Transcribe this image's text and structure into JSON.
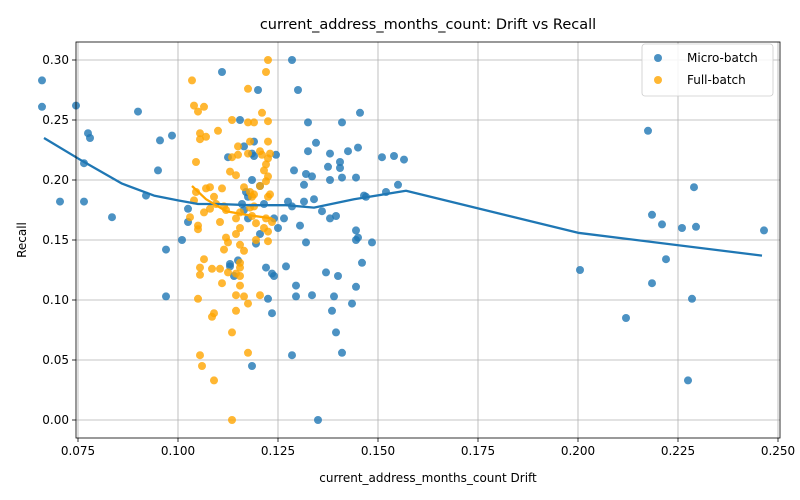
{
  "chart_data": {
    "type": "scatter",
    "title": "current_address_months_count: Drift vs Recall",
    "xlabel": "current_address_months_count Drift",
    "ylabel": "Recall",
    "xlim": [
      0.0745,
      0.2505
    ],
    "ylim": [
      -0.015,
      0.315
    ],
    "xticks": [
      "0.075",
      "0.100",
      "0.125",
      "0.150",
      "0.175",
      "0.200",
      "0.225",
      "0.250"
    ],
    "xtick_values": [
      0.075,
      0.1,
      0.125,
      0.15,
      0.175,
      0.2,
      0.225,
      0.25
    ],
    "yticks": [
      "0.00",
      "0.05",
      "0.10",
      "0.15",
      "0.20",
      "0.25",
      "0.30"
    ],
    "ytick_values": [
      0.0,
      0.05,
      0.1,
      0.15,
      0.2,
      0.25,
      0.3
    ],
    "grid": true,
    "legend_position": "top-right",
    "series": [
      {
        "name": "Micro-batch",
        "kind": "scatter",
        "color": "#1f77b4",
        "points": [
          [
            0.066,
            0.283
          ],
          [
            0.066,
            0.261
          ],
          [
            0.0745,
            0.262
          ],
          [
            0.0775,
            0.239
          ],
          [
            0.078,
            0.235
          ],
          [
            0.0765,
            0.214
          ],
          [
            0.0765,
            0.182
          ],
          [
            0.0705,
            0.182
          ],
          [
            0.0835,
            0.169
          ],
          [
            0.09,
            0.257
          ],
          [
            0.092,
            0.187
          ],
          [
            0.0955,
            0.233
          ],
          [
            0.0985,
            0.237
          ],
          [
            0.095,
            0.208
          ],
          [
            0.101,
            0.15
          ],
          [
            0.097,
            0.142
          ],
          [
            0.097,
            0.103
          ],
          [
            0.1025,
            0.165
          ],
          [
            0.1025,
            0.176
          ],
          [
            0.111,
            0.29
          ],
          [
            0.1125,
            0.219
          ],
          [
            0.113,
            0.13
          ],
          [
            0.114,
            0.12
          ],
          [
            0.116,
            0.18
          ],
          [
            0.117,
            0.19
          ],
          [
            0.1175,
            0.186
          ],
          [
            0.1165,
            0.228
          ],
          [
            0.1185,
            0.222
          ],
          [
            0.119,
            0.22
          ],
          [
            0.12,
            0.275
          ],
          [
            0.1155,
            0.25
          ],
          [
            0.1205,
            0.195
          ],
          [
            0.1205,
            0.155
          ],
          [
            0.1195,
            0.147
          ],
          [
            0.115,
            0.133
          ],
          [
            0.113,
            0.128
          ],
          [
            0.1165,
            0.175
          ],
          [
            0.1175,
            0.168
          ],
          [
            0.1185,
            0.2
          ],
          [
            0.119,
            0.232
          ],
          [
            0.1215,
            0.18
          ],
          [
            0.122,
            0.127
          ],
          [
            0.1225,
            0.101
          ],
          [
            0.1235,
            0.089
          ],
          [
            0.124,
            0.12
          ],
          [
            0.1235,
            0.122
          ],
          [
            0.124,
            0.168
          ],
          [
            0.1245,
            0.221
          ],
          [
            0.125,
            0.16
          ],
          [
            0.1265,
            0.168
          ],
          [
            0.127,
            0.128
          ],
          [
            0.1285,
            0.3
          ],
          [
            0.1275,
            0.182
          ],
          [
            0.1285,
            0.178
          ],
          [
            0.129,
            0.208
          ],
          [
            0.1295,
            0.112
          ],
          [
            0.13,
            0.275
          ],
          [
            0.1305,
            0.162
          ],
          [
            0.1315,
            0.182
          ],
          [
            0.1315,
            0.196
          ],
          [
            0.132,
            0.205
          ],
          [
            0.1325,
            0.224
          ],
          [
            0.1325,
            0.248
          ],
          [
            0.1335,
            0.203
          ],
          [
            0.134,
            0.184
          ],
          [
            0.1335,
            0.104
          ],
          [
            0.1345,
            0.231
          ],
          [
            0.135,
            0.0
          ],
          [
            0.132,
            0.148
          ],
          [
            0.1285,
            0.054
          ],
          [
            0.1295,
            0.103
          ],
          [
            0.136,
            0.174
          ],
          [
            0.137,
            0.123
          ],
          [
            0.138,
            0.168
          ],
          [
            0.1375,
            0.211
          ],
          [
            0.138,
            0.222
          ],
          [
            0.138,
            0.2
          ],
          [
            0.1385,
            0.091
          ],
          [
            0.139,
            0.103
          ],
          [
            0.1395,
            0.073
          ],
          [
            0.1395,
            0.17
          ],
          [
            0.14,
            0.12
          ],
          [
            0.1405,
            0.21
          ],
          [
            0.1405,
            0.215
          ],
          [
            0.141,
            0.202
          ],
          [
            0.141,
            0.248
          ],
          [
            0.141,
            0.056
          ],
          [
            0.1425,
            0.224
          ],
          [
            0.1435,
            0.097
          ],
          [
            0.1445,
            0.111
          ],
          [
            0.1445,
            0.15
          ],
          [
            0.1445,
            0.158
          ],
          [
            0.145,
            0.152
          ],
          [
            0.1445,
            0.202
          ],
          [
            0.145,
            0.227
          ],
          [
            0.1455,
            0.256
          ],
          [
            0.146,
            0.131
          ],
          [
            0.1465,
            0.187
          ],
          [
            0.147,
            0.186
          ],
          [
            0.1485,
            0.148
          ],
          [
            0.151,
            0.219
          ],
          [
            0.152,
            0.19
          ],
          [
            0.154,
            0.22
          ],
          [
            0.155,
            0.196
          ],
          [
            0.1565,
            0.217
          ],
          [
            0.1185,
            0.045
          ],
          [
            0.2005,
            0.125
          ],
          [
            0.212,
            0.085
          ],
          [
            0.2175,
            0.241
          ],
          [
            0.2185,
            0.171
          ],
          [
            0.2185,
            0.114
          ],
          [
            0.221,
            0.163
          ],
          [
            0.222,
            0.134
          ],
          [
            0.226,
            0.16
          ],
          [
            0.2275,
            0.033
          ],
          [
            0.2285,
            0.101
          ],
          [
            0.229,
            0.194
          ],
          [
            0.2295,
            0.161
          ],
          [
            0.2465,
            0.158
          ]
        ]
      },
      {
        "name": "Full-batch",
        "kind": "scatter",
        "color": "#ffa500",
        "points": [
          [
            0.1035,
            0.283
          ],
          [
            0.104,
            0.262
          ],
          [
            0.105,
            0.257
          ],
          [
            0.1065,
            0.261
          ],
          [
            0.1055,
            0.239
          ],
          [
            0.1055,
            0.234
          ],
          [
            0.107,
            0.236
          ],
          [
            0.1045,
            0.215
          ],
          [
            0.108,
            0.194
          ],
          [
            0.107,
            0.193
          ],
          [
            0.1045,
            0.19
          ],
          [
            0.104,
            0.183
          ],
          [
            0.103,
            0.169
          ],
          [
            0.105,
            0.162
          ],
          [
            0.105,
            0.159
          ],
          [
            0.1065,
            0.173
          ],
          [
            0.108,
            0.176
          ],
          [
            0.109,
            0.186
          ],
          [
            0.11,
            0.241
          ],
          [
            0.1095,
            0.18
          ],
          [
            0.1105,
            0.165
          ],
          [
            0.111,
            0.193
          ],
          [
            0.1115,
            0.178
          ],
          [
            0.112,
            0.175
          ],
          [
            0.112,
            0.152
          ],
          [
            0.1125,
            0.148
          ],
          [
            0.1115,
            0.142
          ],
          [
            0.1065,
            0.134
          ],
          [
            0.1055,
            0.127
          ],
          [
            0.1055,
            0.121
          ],
          [
            0.1085,
            0.126
          ],
          [
            0.1105,
            0.126
          ],
          [
            0.111,
            0.114
          ],
          [
            0.1125,
            0.123
          ],
          [
            0.105,
            0.101
          ],
          [
            0.1085,
            0.086
          ],
          [
            0.109,
            0.089
          ],
          [
            0.1055,
            0.054
          ],
          [
            0.106,
            0.045
          ],
          [
            0.109,
            0.033
          ],
          [
            0.1135,
            0.073
          ],
          [
            0.1135,
            0.0
          ],
          [
            0.113,
            0.207
          ],
          [
            0.1135,
            0.219
          ],
          [
            0.1135,
            0.25
          ],
          [
            0.1145,
            0.204
          ],
          [
            0.1145,
            0.168
          ],
          [
            0.1155,
            0.173
          ],
          [
            0.1155,
            0.16
          ],
          [
            0.1145,
            0.155
          ],
          [
            0.1155,
            0.146
          ],
          [
            0.1165,
            0.141
          ],
          [
            0.1155,
            0.131
          ],
          [
            0.1155,
            0.127
          ],
          [
            0.1145,
            0.122
          ],
          [
            0.1155,
            0.12
          ],
          [
            0.1155,
            0.112
          ],
          [
            0.1145,
            0.104
          ],
          [
            0.1165,
            0.103
          ],
          [
            0.1145,
            0.091
          ],
          [
            0.1175,
            0.097
          ],
          [
            0.1175,
            0.056
          ],
          [
            0.115,
            0.228
          ],
          [
            0.115,
            0.221
          ],
          [
            0.1175,
            0.222
          ],
          [
            0.1165,
            0.194
          ],
          [
            0.118,
            0.177
          ],
          [
            0.1185,
            0.17
          ],
          [
            0.1175,
            0.276
          ],
          [
            0.118,
            0.232
          ],
          [
            0.1185,
            0.186
          ],
          [
            0.119,
            0.178
          ],
          [
            0.1195,
            0.164
          ],
          [
            0.1195,
            0.15
          ],
          [
            0.119,
            0.188
          ],
          [
            0.1205,
            0.195
          ],
          [
            0.1205,
            0.224
          ],
          [
            0.121,
            0.256
          ],
          [
            0.121,
            0.221
          ],
          [
            0.1205,
            0.104
          ],
          [
            0.1215,
            0.208
          ],
          [
            0.122,
            0.213
          ],
          [
            0.122,
            0.199
          ],
          [
            0.122,
            0.168
          ],
          [
            0.1225,
            0.157
          ],
          [
            0.1225,
            0.149
          ],
          [
            0.1225,
            0.3
          ],
          [
            0.122,
            0.29
          ],
          [
            0.1225,
            0.249
          ],
          [
            0.1225,
            0.232
          ],
          [
            0.123,
            0.222
          ],
          [
            0.1225,
            0.218
          ],
          [
            0.1225,
            0.203
          ],
          [
            0.123,
            0.188
          ],
          [
            0.1225,
            0.186
          ],
          [
            0.1235,
            0.165
          ],
          [
            0.1215,
            0.16
          ],
          [
            0.118,
            0.19
          ],
          [
            0.1175,
            0.248
          ],
          [
            0.119,
            0.248
          ]
        ]
      },
      {
        "name": "",
        "kind": "line",
        "color": "#1f77b4",
        "points": [
          [
            0.0665,
            0.235
          ],
          [
            0.076,
            0.216
          ],
          [
            0.086,
            0.197
          ],
          [
            0.094,
            0.187
          ],
          [
            0.1,
            0.183
          ],
          [
            0.105,
            0.18
          ],
          [
            0.11,
            0.18
          ],
          [
            0.118,
            0.179
          ],
          [
            0.127,
            0.179
          ],
          [
            0.134,
            0.177
          ],
          [
            0.144,
            0.184
          ],
          [
            0.157,
            0.191
          ],
          [
            0.2,
            0.156
          ],
          [
            0.246,
            0.137
          ]
        ]
      },
      {
        "name": "",
        "kind": "line",
        "color": "#ffa500",
        "points": [
          [
            0.1035,
            0.195
          ],
          [
            0.107,
            0.184
          ],
          [
            0.112,
            0.174
          ],
          [
            0.117,
            0.171
          ],
          [
            0.1235,
            0.168
          ]
        ]
      }
    ]
  }
}
